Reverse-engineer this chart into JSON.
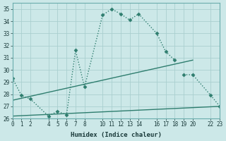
{
  "xlabel": "Humidex (Indice chaleur)",
  "background_color": "#cce8e8",
  "grid_color": "#aacfcf",
  "line_color": "#2e7d6e",
  "xlim": [
    0,
    23
  ],
  "ylim": [
    26,
    35.5
  ],
  "xtick_labels": [
    "0",
    "1",
    "2",
    "4",
    "5",
    "6",
    "7",
    "8",
    "10",
    "11",
    "12",
    "13",
    "14",
    "16",
    "17",
    "18",
    "19",
    "20",
    "22",
    "23"
  ],
  "xtick_positions": [
    0,
    1,
    2,
    4,
    5,
    6,
    7,
    8,
    10,
    11,
    12,
    13,
    14,
    16,
    17,
    18,
    19,
    20,
    22,
    23
  ],
  "ytick_labels": [
    "26",
    "27",
    "28",
    "29",
    "30",
    "31",
    "32",
    "33",
    "34",
    "35"
  ],
  "ytick_positions": [
    26,
    27,
    28,
    29,
    30,
    31,
    32,
    33,
    34,
    35
  ],
  "series": [
    {
      "x": [
        0,
        1,
        2,
        4,
        5,
        6,
        7,
        8,
        10,
        11,
        12,
        13,
        14,
        16,
        17,
        18
      ],
      "y": [
        29.3,
        27.9,
        27.6,
        26.2,
        26.6,
        26.3,
        31.6,
        28.6,
        34.5,
        35.0,
        34.6,
        34.1,
        34.6,
        33.0,
        31.5,
        30.8
      ],
      "linestyle": ":",
      "marker": "D",
      "markersize": 2.5,
      "linewidth": 1.0
    },
    {
      "x": [
        19,
        20,
        22,
        23
      ],
      "y": [
        29.6,
        29.6,
        27.9,
        27.0
      ],
      "linestyle": ":",
      "marker": "D",
      "markersize": 2.5,
      "linewidth": 1.0
    },
    {
      "x": [
        0,
        20
      ],
      "y": [
        27.5,
        30.8
      ],
      "linestyle": "-",
      "marker": null,
      "markersize": 0,
      "linewidth": 1.0
    },
    {
      "x": [
        0,
        23
      ],
      "y": [
        26.2,
        27.0
      ],
      "linestyle": "-",
      "marker": null,
      "markersize": 0,
      "linewidth": 1.0
    }
  ]
}
